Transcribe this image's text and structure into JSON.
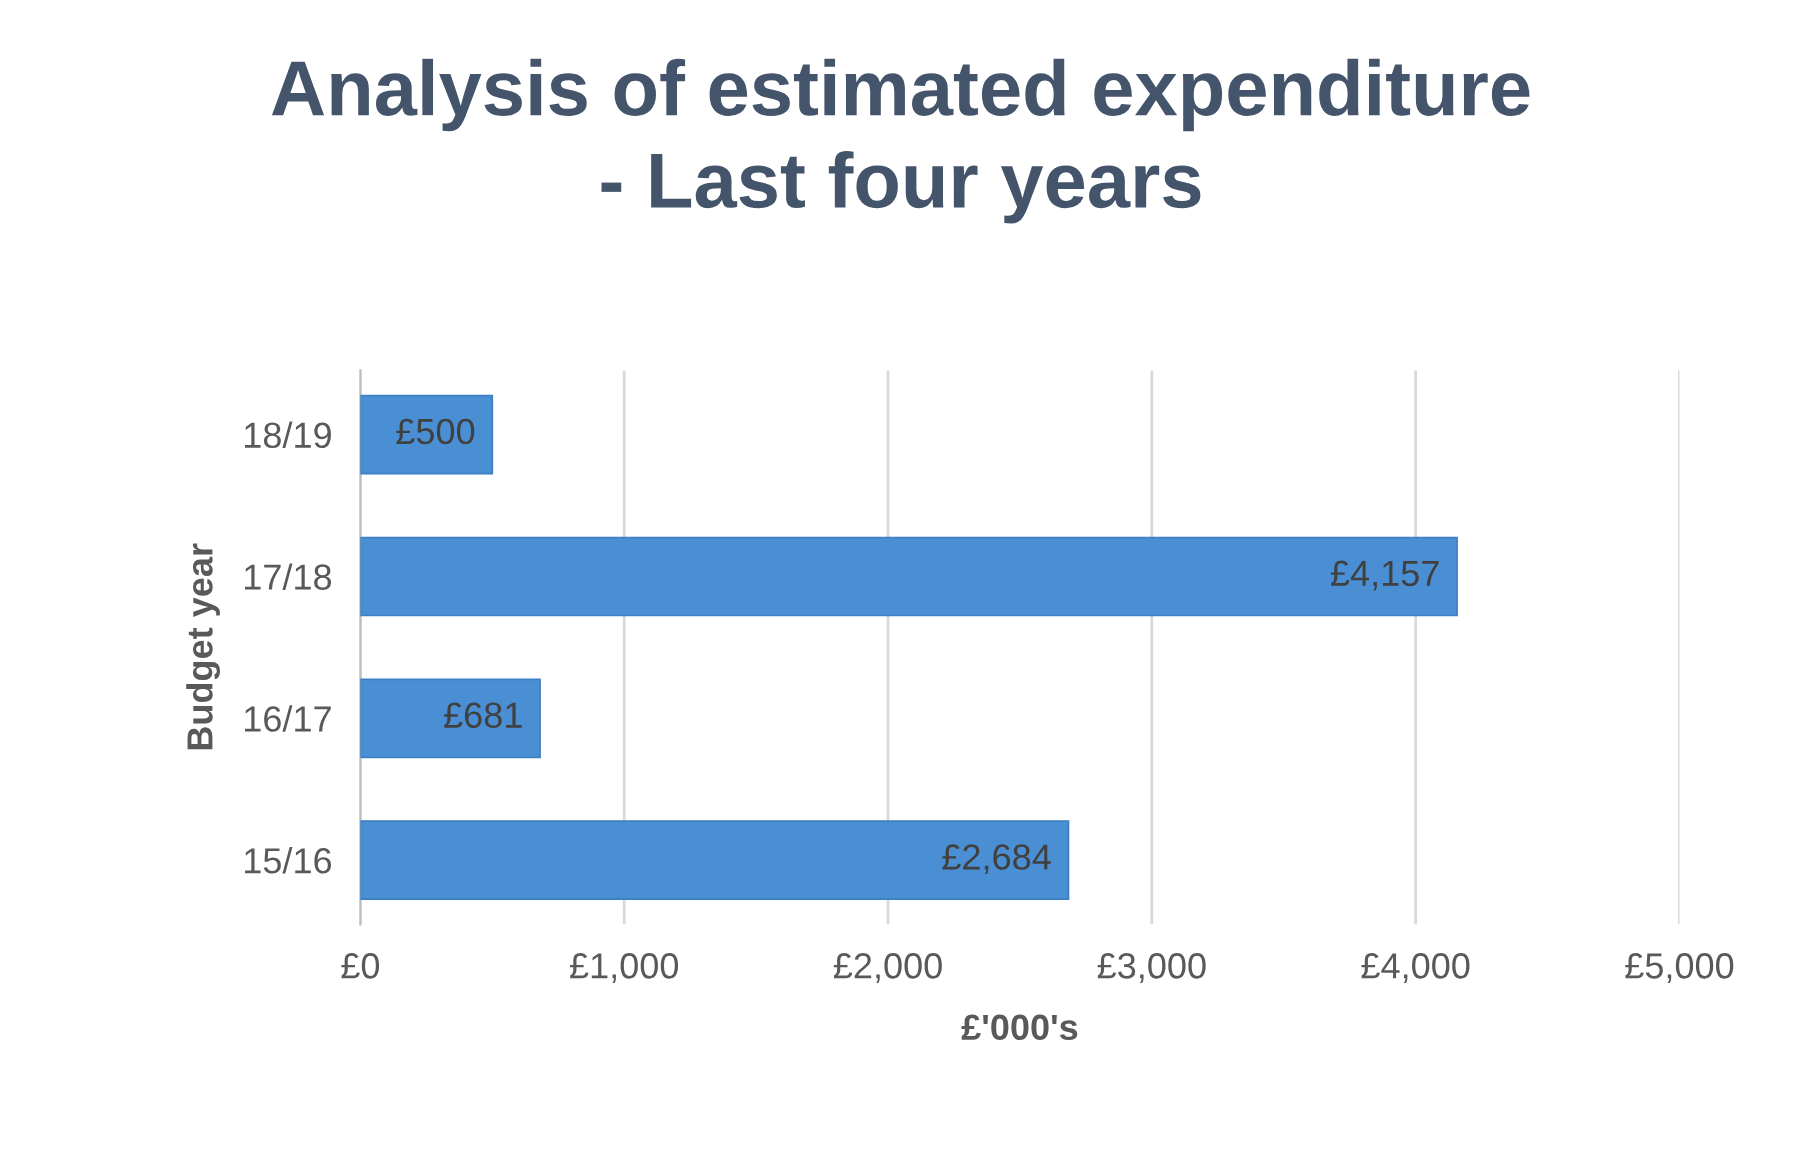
{
  "chart_data": {
    "type": "bar",
    "orientation": "horizontal",
    "title": "Analysis of estimated expenditure\n- Last four years",
    "xlabel": "£'000's",
    "ylabel": "Budget year",
    "categories": [
      "18/19",
      "17/18",
      "16/17",
      "15/16"
    ],
    "values": [
      500,
      4157,
      681,
      2684
    ],
    "value_labels": [
      "£500",
      "£4,157",
      "£681",
      "£2,684"
    ],
    "color": "#4a8fd4",
    "xlim": [
      0,
      5000
    ],
    "xticks": [
      {
        "value": 0,
        "label": "£0"
      },
      {
        "value": 1000,
        "label": "£1,000"
      },
      {
        "value": 2000,
        "label": "£2,000"
      },
      {
        "value": 3000,
        "label": "£3,000"
      },
      {
        "value": 4000,
        "label": "£4,000"
      },
      {
        "value": 5000,
        "label": "£5,000"
      }
    ],
    "grid": "x"
  }
}
